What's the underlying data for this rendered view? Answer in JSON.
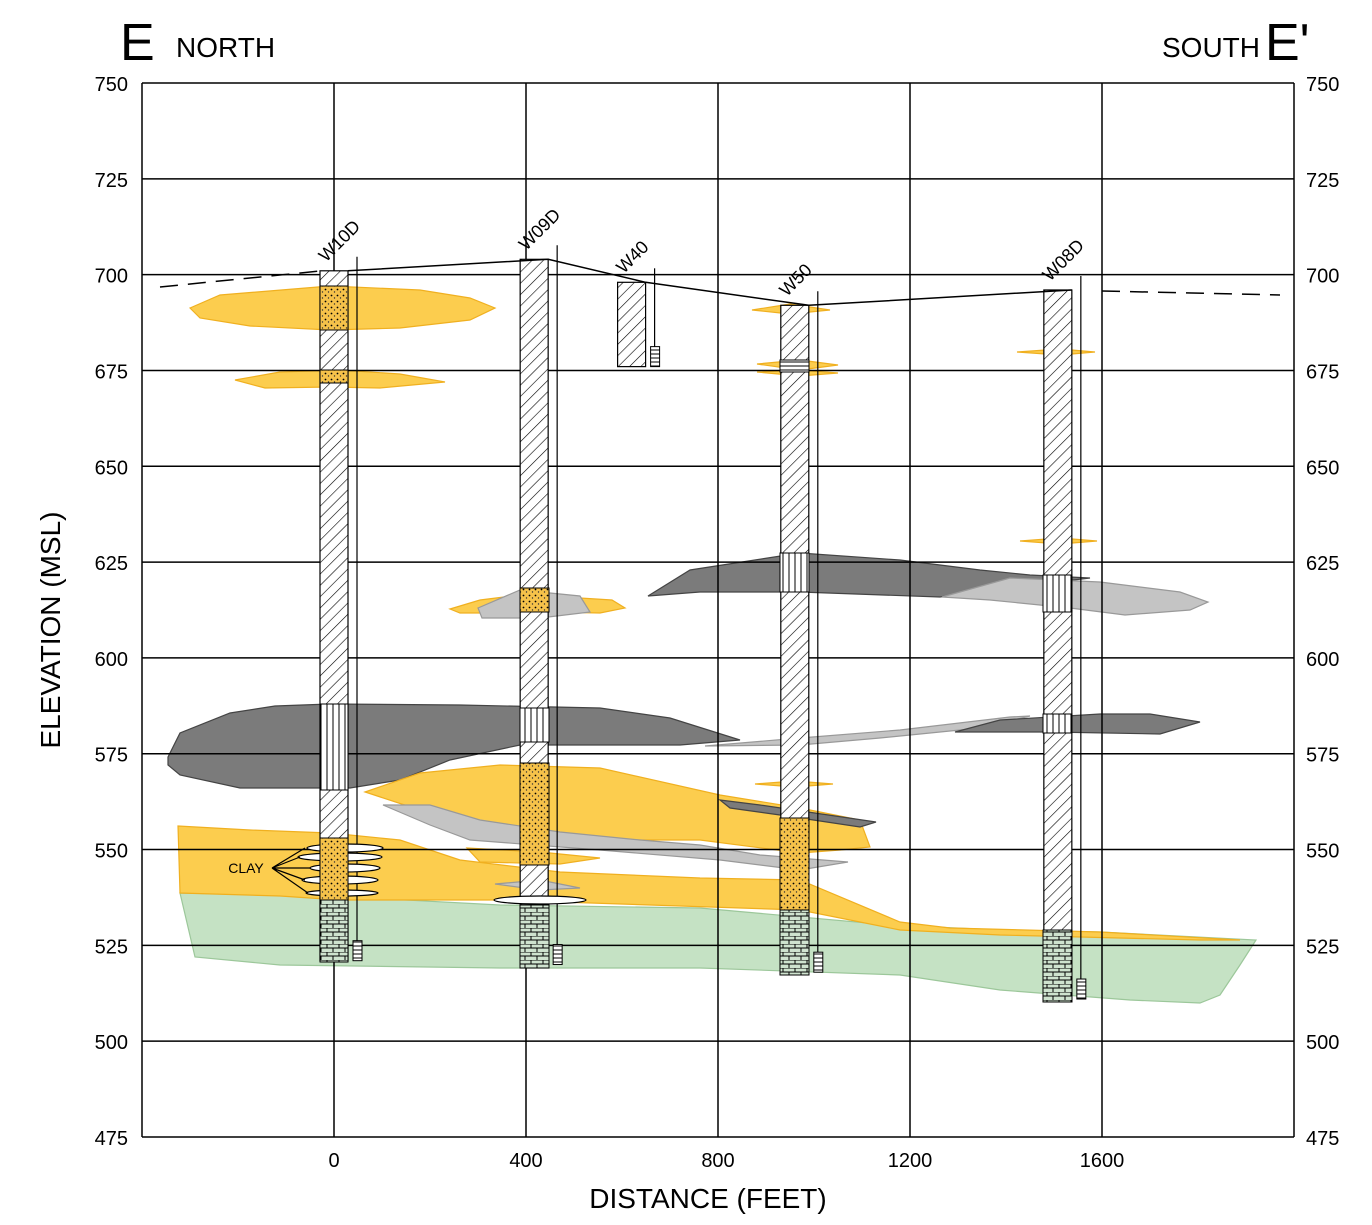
{
  "chart_data": {
    "type": "cross-section",
    "title_left": "E",
    "title_left_sub": "NORTH",
    "title_right_sub": "SOUTH",
    "title_right": "E'",
    "x_label": "DISTANCE (FEET)",
    "y_label": "ELEVATION (MSL)",
    "xlim": [
      -400,
      2000
    ],
    "xticks": [
      0,
      400,
      800,
      1200,
      1600
    ],
    "ylim": [
      475,
      750
    ],
    "yticks": [
      475,
      500,
      525,
      550,
      575,
      600,
      625,
      650,
      675,
      700,
      725,
      750
    ],
    "grid": true,
    "annotation": "CLAY",
    "wells": [
      {
        "name": "W10D",
        "x": 0,
        "top": 701,
        "bottom": 521
      },
      {
        "name": "W09D",
        "x": 417,
        "top": 704,
        "bottom": 520
      },
      {
        "name": "W40",
        "x": 620,
        "top": 698,
        "bottom": 676
      },
      {
        "name": "W50",
        "x": 960,
        "top": 692,
        "bottom": 518
      },
      {
        "name": "W08D",
        "x": 1508,
        "top": 696,
        "bottom": 511
      }
    ]
  }
}
